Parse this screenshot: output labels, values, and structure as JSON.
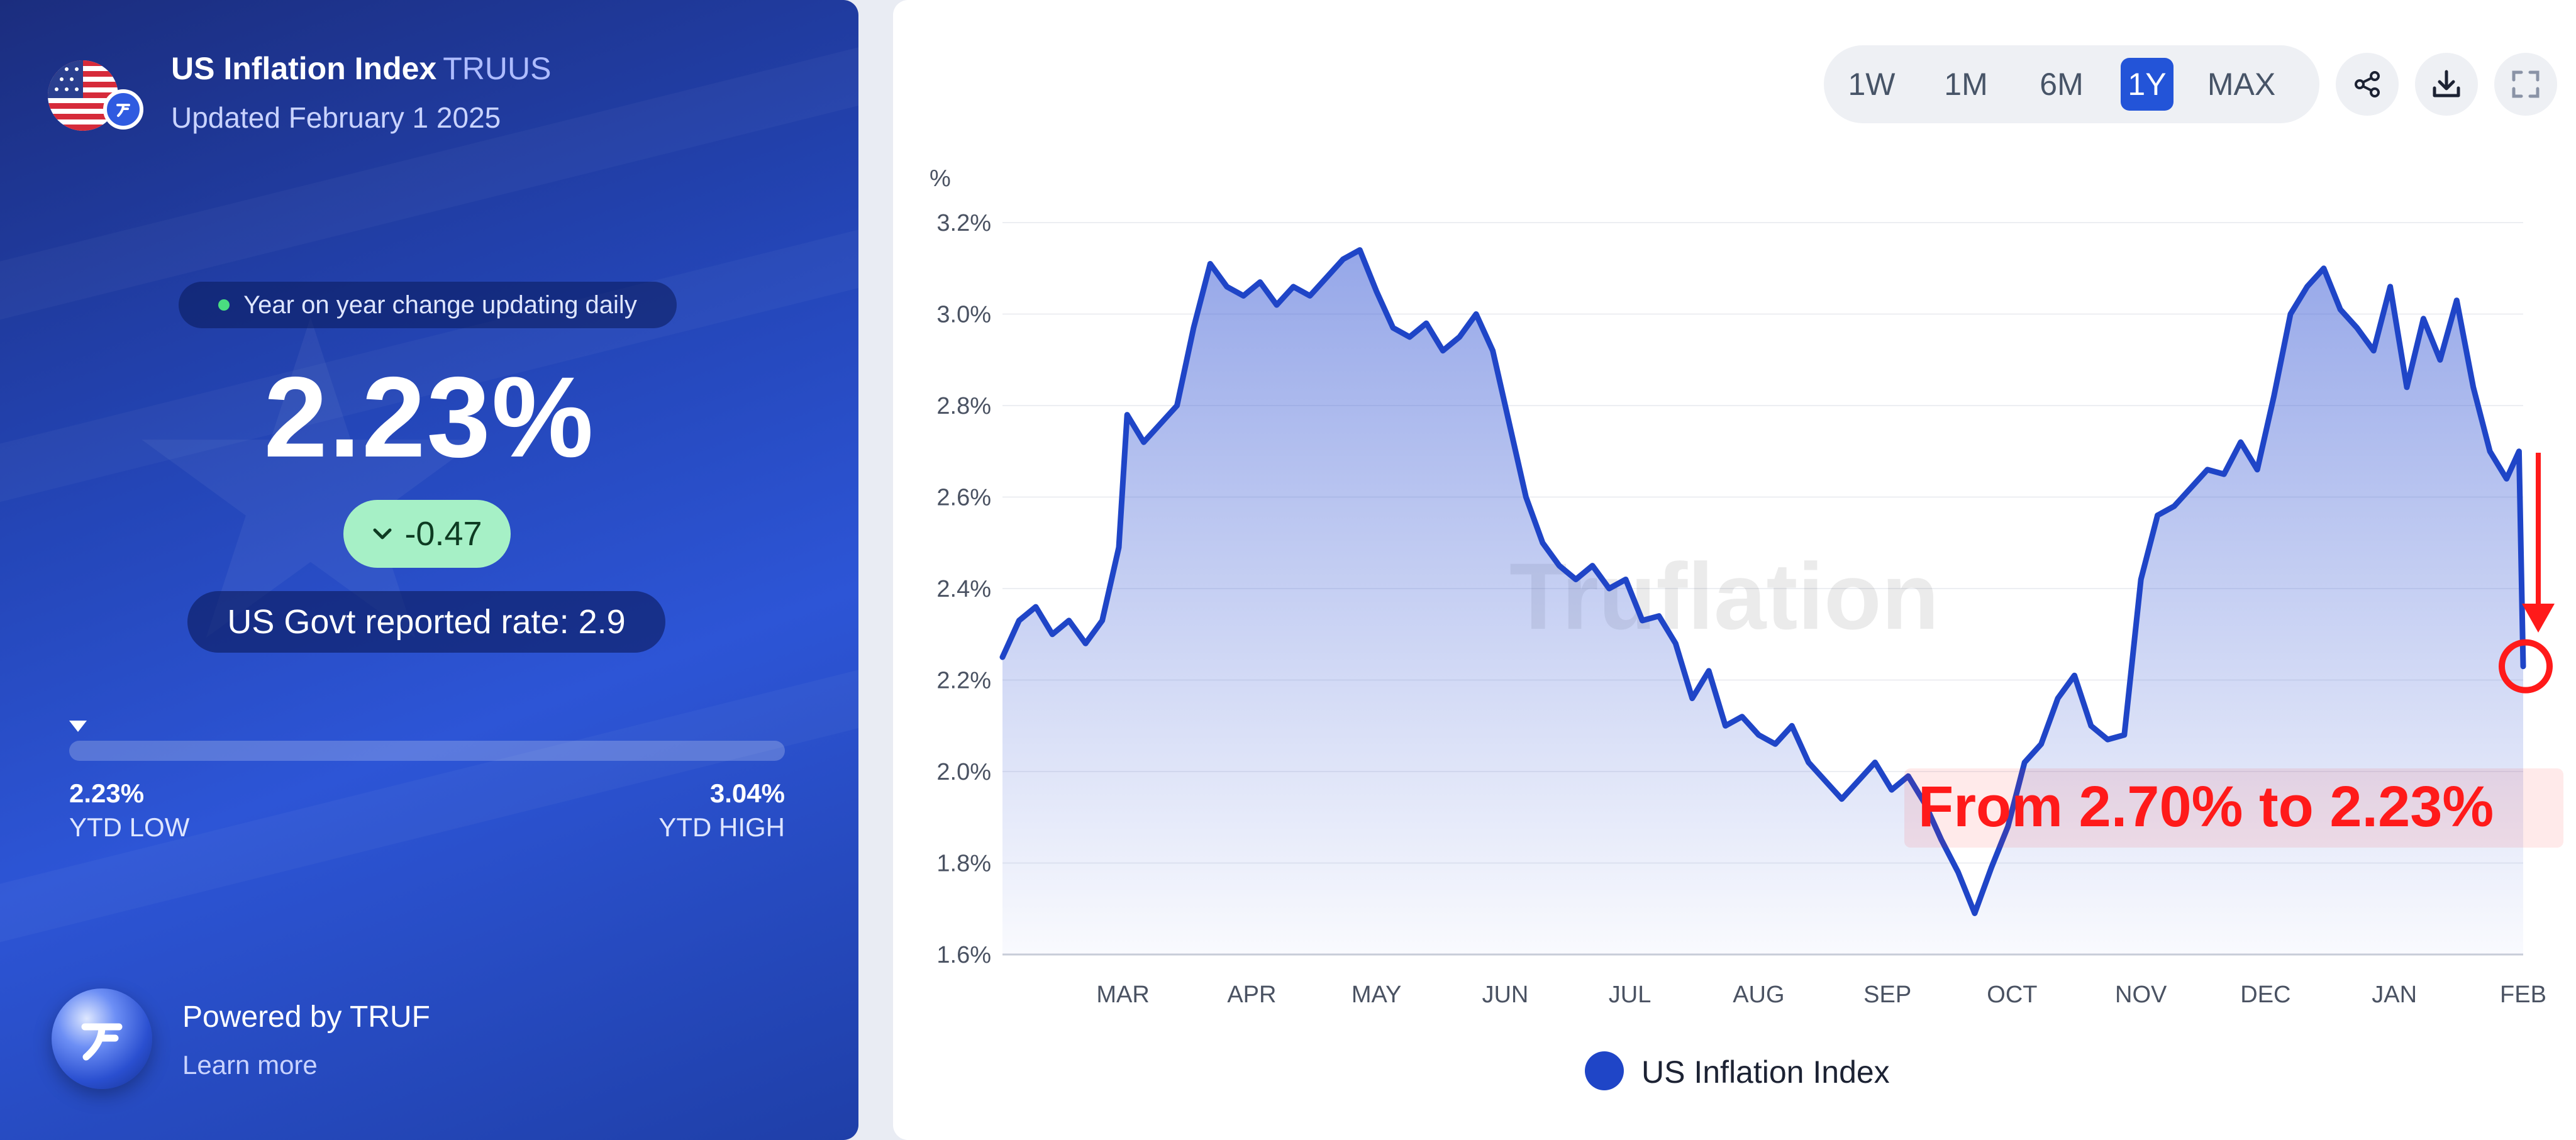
{
  "header": {
    "title": "US Inflation Index",
    "ticker": "TRUUS",
    "updated": "Updated February 1 2025"
  },
  "summary": {
    "live_label": "Year on year change updating daily",
    "rate": "2.23%",
    "change": "-0.47",
    "govt_rate": "US Govt reported rate: 2.9"
  },
  "ytd": {
    "low_value": "2.23%",
    "low_label": "YTD LOW",
    "high_value": "3.04%",
    "high_label": "YTD HIGH"
  },
  "footer": {
    "powered": "Powered by TRUF",
    "learn_more": "Learn more"
  },
  "toolbar": {
    "ranges": [
      "1W",
      "1M",
      "6M",
      "1Y",
      "MAX"
    ],
    "active_range": "1Y",
    "icons": [
      "share-icon",
      "download-icon",
      "fullscreen-icon"
    ]
  },
  "watermark": "Truflation",
  "annotation": {
    "text": "From 2.70% to 2.23%",
    "color": "#ff1a1a"
  },
  "colors": {
    "line": "#1f45c7",
    "accent": "#2354d8",
    "positive_pill": "#a6f0c6"
  },
  "chart_data": {
    "type": "area",
    "title": "",
    "xlabel": "",
    "ylabel": "%",
    "ylim": [
      1.6,
      3.2
    ],
    "yticks": [
      "1.6%",
      "1.8%",
      "2.0%",
      "2.2%",
      "2.4%",
      "2.6%",
      "2.8%",
      "3.0%",
      "3.2%"
    ],
    "xticks": [
      "MAR",
      "APR",
      "MAY",
      "JUN",
      "JUL",
      "AUG",
      "SEP",
      "OCT",
      "NOV",
      "DEC",
      "JAN",
      "FEB"
    ],
    "x_range_months": [
      "2024-02",
      "2025-02"
    ],
    "grid": true,
    "legend": "bottom-center",
    "series": [
      {
        "name": "US Inflation Index",
        "x": [
          "2024-02-01",
          "2024-02-05",
          "2024-02-09",
          "2024-02-13",
          "2024-02-17",
          "2024-02-21",
          "2024-02-25",
          "2024-02-29",
          "2024-03-02",
          "2024-03-06",
          "2024-03-10",
          "2024-03-14",
          "2024-03-18",
          "2024-03-22",
          "2024-03-26",
          "2024-03-30",
          "2024-04-03",
          "2024-04-07",
          "2024-04-11",
          "2024-04-15",
          "2024-04-19",
          "2024-04-23",
          "2024-04-27",
          "2024-05-01",
          "2024-05-05",
          "2024-05-09",
          "2024-05-13",
          "2024-05-17",
          "2024-05-21",
          "2024-05-25",
          "2024-05-29",
          "2024-06-02",
          "2024-06-06",
          "2024-06-10",
          "2024-06-14",
          "2024-06-18",
          "2024-06-22",
          "2024-06-26",
          "2024-06-30",
          "2024-07-04",
          "2024-07-08",
          "2024-07-12",
          "2024-07-16",
          "2024-07-20",
          "2024-07-24",
          "2024-07-28",
          "2024-08-01",
          "2024-08-05",
          "2024-08-09",
          "2024-08-13",
          "2024-08-17",
          "2024-08-21",
          "2024-08-25",
          "2024-08-29",
          "2024-09-02",
          "2024-09-06",
          "2024-09-10",
          "2024-09-14",
          "2024-09-18",
          "2024-09-22",
          "2024-09-26",
          "2024-09-30",
          "2024-10-04",
          "2024-10-08",
          "2024-10-12",
          "2024-10-16",
          "2024-10-20",
          "2024-10-24",
          "2024-10-28",
          "2024-11-01",
          "2024-11-05",
          "2024-11-09",
          "2024-11-13",
          "2024-11-17",
          "2024-11-21",
          "2024-11-25",
          "2024-11-29",
          "2024-12-03",
          "2024-12-07",
          "2024-12-11",
          "2024-12-15",
          "2024-12-19",
          "2024-12-23",
          "2024-12-27",
          "2024-12-31",
          "2025-01-04",
          "2025-01-08",
          "2025-01-12",
          "2025-01-16",
          "2025-01-20",
          "2025-01-24",
          "2025-01-28",
          "2025-01-31",
          "2025-02-01"
        ],
        "values": [
          2.25,
          2.33,
          2.36,
          2.3,
          2.33,
          2.28,
          2.33,
          2.49,
          2.78,
          2.72,
          2.76,
          2.8,
          2.97,
          3.11,
          3.06,
          3.04,
          3.07,
          3.02,
          3.06,
          3.04,
          3.08,
          3.12,
          3.14,
          3.05,
          2.97,
          2.95,
          2.98,
          2.92,
          2.95,
          3.0,
          2.92,
          2.76,
          2.6,
          2.5,
          2.45,
          2.42,
          2.45,
          2.4,
          2.42,
          2.33,
          2.34,
          2.28,
          2.16,
          2.22,
          2.1,
          2.12,
          2.08,
          2.06,
          2.1,
          2.02,
          1.98,
          1.94,
          1.98,
          2.02,
          1.96,
          1.99,
          1.93,
          1.85,
          1.78,
          1.69,
          1.79,
          1.88,
          2.02,
          2.06,
          2.16,
          2.21,
          2.1,
          2.07,
          2.08,
          2.42,
          2.56,
          2.58,
          2.62,
          2.66,
          2.65,
          2.72,
          2.66,
          2.82,
          3.0,
          3.06,
          3.1,
          3.01,
          2.97,
          2.92,
          3.06,
          2.84,
          2.99,
          2.9,
          3.03,
          2.84,
          2.7,
          2.64,
          2.7,
          2.23
        ]
      }
    ]
  }
}
